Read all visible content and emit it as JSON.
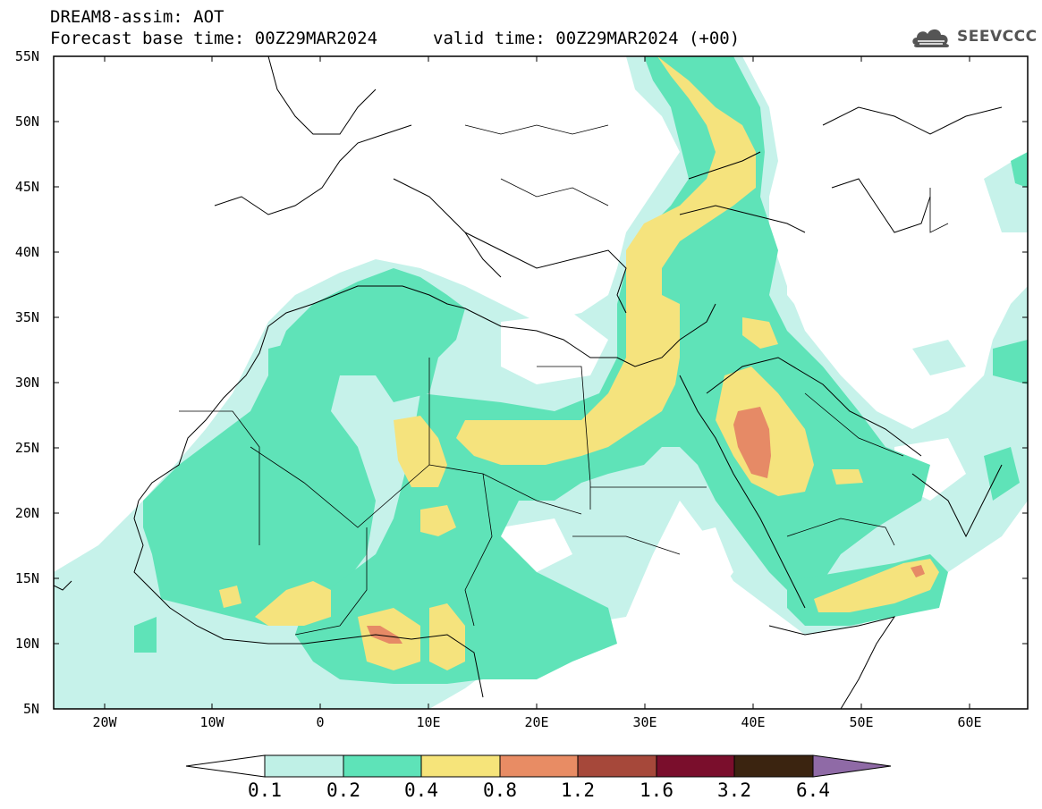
{
  "header": {
    "title": "DREAM8-assim: AOT",
    "base_time": "Forecast base time: 00Z29MAR2024",
    "valid_time": "valid time: 00Z29MAR2024 (+00)"
  },
  "logo": {
    "text": "SEEVCCC",
    "icon": "cloud-icon"
  },
  "map": {
    "lat_labels": [
      "55N",
      "50N",
      "45N",
      "40N",
      "35N",
      "30N",
      "25N",
      "20N",
      "15N",
      "10N",
      "5N"
    ],
    "lon_labels": [
      "20W",
      "10W",
      "0",
      "10E",
      "20E",
      "30E",
      "40E",
      "50E",
      "60E"
    ]
  },
  "colorbar": {
    "labels": [
      "0.1",
      "0.2",
      "0.4",
      "0.8",
      "1.2",
      "1.6",
      "3.2",
      "6.4"
    ],
    "colors": [
      "#ffffff",
      "#bff0e6",
      "#5ee3b8",
      "#f6e47a",
      "#e88c64",
      "#a6483a",
      "#7a0e2c",
      "#3b2410",
      "#8f6aa6"
    ]
  },
  "fill_colors": {
    "level_0_1": "#c6f2ea",
    "level_0_2": "#5fe3b8",
    "level_0_4": "#f5e37d",
    "level_0_8": "#e68a66"
  }
}
